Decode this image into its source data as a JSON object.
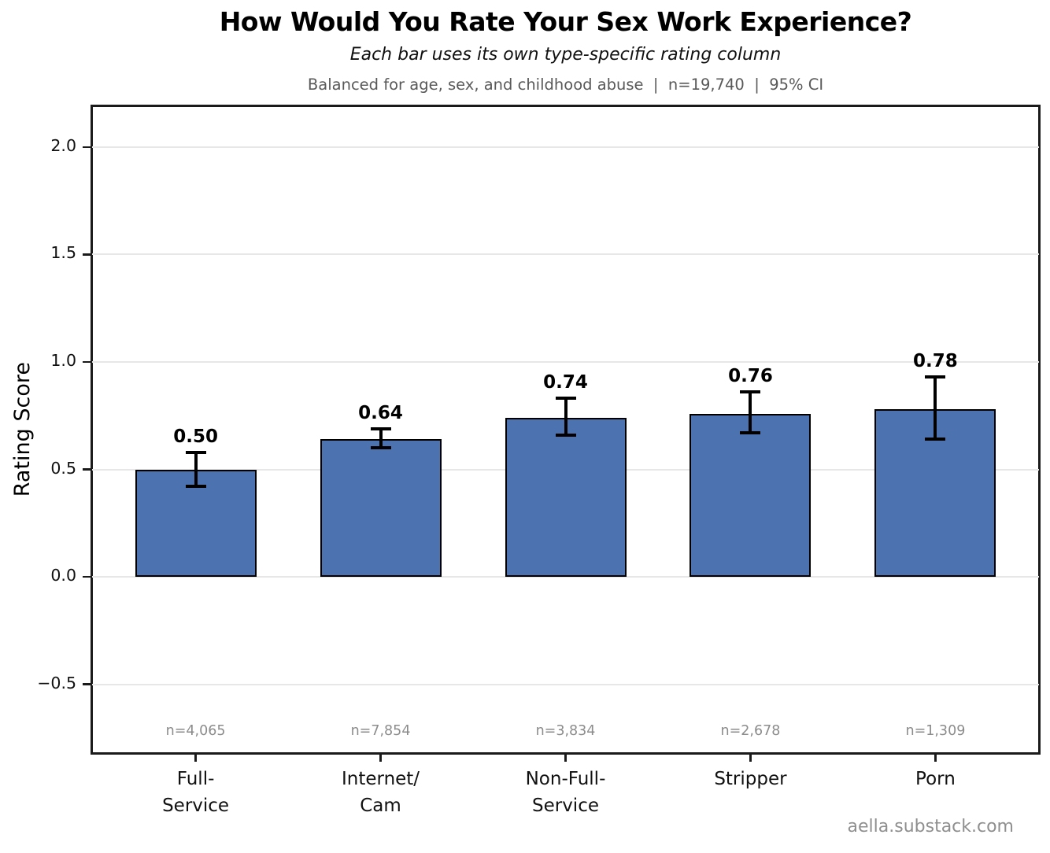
{
  "header": {
    "title": "How Would You Rate Your Sex Work Experience?",
    "subtitle": "Each bar uses its own type-specific rating column",
    "meta": "Balanced for age, sex, and childhood abuse  |  n=19,740  |  95% CI"
  },
  "footer": {
    "credit": "aella.substack.com"
  },
  "chart_data": {
    "type": "bar",
    "title": "How Would You Rate Your Sex Work Experience?",
    "subtitle": "Each bar uses its own type-specific rating column",
    "note": "Balanced for age, sex, and childhood abuse | n=19,740 | 95% CI",
    "source": "aella.substack.com",
    "xlabel": "",
    "ylabel": "Rating Score",
    "categories": [
      "Full-\nService",
      "Internet/\nCam",
      "Non-Full-\nService",
      "Stripper",
      "Porn"
    ],
    "values": [
      0.5,
      0.64,
      0.74,
      0.76,
      0.78
    ],
    "value_labels": [
      "0.50",
      "0.64",
      "0.74",
      "0.76",
      "0.78"
    ],
    "ci_low": [
      0.42,
      0.6,
      0.66,
      0.67,
      0.64
    ],
    "ci_high": [
      0.58,
      0.69,
      0.83,
      0.86,
      0.93
    ],
    "sample_sizes": [
      "n=4,065",
      "n=7,854",
      "n=3,834",
      "n=2,678",
      "n=1,309"
    ],
    "yticks": [
      2.0,
      1.5,
      1.0,
      0.5,
      0.0,
      -0.5
    ],
    "ytick_labels": [
      "2.0",
      "1.5",
      "1.0",
      "0.5",
      "0.0",
      "−0.5"
    ],
    "ylim": [
      -0.82,
      2.19
    ],
    "grid": true,
    "legend": false,
    "colors": {
      "bar_fill": "#4C72B0",
      "bar_edge": "#000000",
      "error_bar": "#000000",
      "gridline": "#e7e7e7",
      "axis": "#1a1a1a",
      "tick_label": "#111111",
      "note_text": "#595959",
      "sample_size_text": "#8c8c8c",
      "source_text": "#8f8f8f"
    }
  }
}
